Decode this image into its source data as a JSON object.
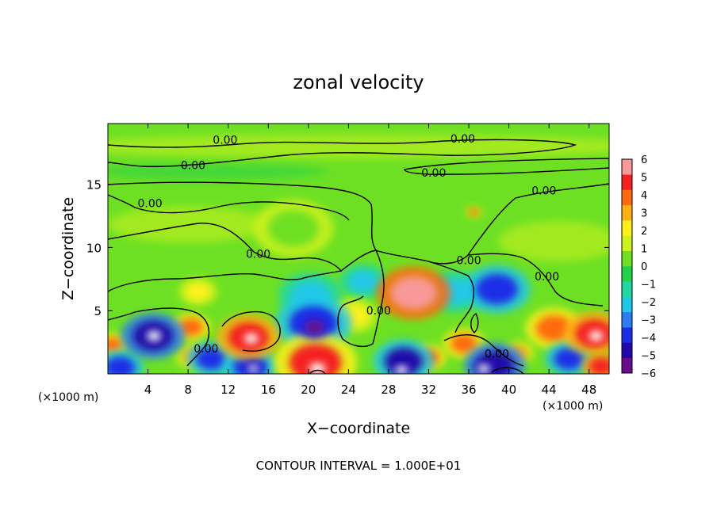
{
  "chart_data": {
    "type": "heatmap",
    "title": "zonal velocity",
    "xlabel": "X−coordinate",
    "ylabel": "Z−coordinate",
    "x_unit_left": "(×1000 m)",
    "x_unit_right": "(×1000 m)",
    "footer": "CONTOUR INTERVAL = 1.000E+01",
    "xlim": [
      0,
      50
    ],
    "ylim": [
      0,
      19.8
    ],
    "x_ticks": [
      4,
      8,
      12,
      16,
      20,
      24,
      28,
      32,
      36,
      40,
      44,
      48
    ],
    "y_ticks": [
      5,
      10,
      15
    ],
    "colorbar": {
      "range": [
        -6,
        6
      ],
      "ticks": [
        6,
        5,
        4,
        3,
        2,
        1,
        0,
        -1,
        -2,
        -3,
        -4,
        -5,
        -6
      ],
      "tick_labels": [
        "6",
        "5",
        "4",
        "3",
        "2",
        "1",
        "0",
        "−1",
        "−2",
        "−3",
        "−4",
        "−5",
        "−6"
      ],
      "colors": [
        "#6a0c8c",
        "#2208a8",
        "#1b2ee8",
        "#2d7cf0",
        "#20c8e8",
        "#20d8a0",
        "#22d04a",
        "#6ee024",
        "#cdf21c",
        "#fff01a",
        "#ffb012",
        "#ff6a10",
        "#f42020",
        "#f89898"
      ]
    },
    "contour_labels": [
      {
        "text": "0.00",
        "x": 11.7,
        "y": 18.5
      },
      {
        "text": "0.00",
        "x": 35.4,
        "y": 18.6
      },
      {
        "text": "0.00",
        "x": 8.5,
        "y": 16.5
      },
      {
        "text": "0.00",
        "x": 32.5,
        "y": 15.9
      },
      {
        "text": "0.00",
        "x": 43.5,
        "y": 14.5
      },
      {
        "text": "0.00",
        "x": 4.2,
        "y": 13.5
      },
      {
        "text": "0.00",
        "x": 15.0,
        "y": 9.5
      },
      {
        "text": "0.00",
        "x": 36.0,
        "y": 9.0
      },
      {
        "text": "0.00",
        "x": 43.8,
        "y": 7.7
      },
      {
        "text": "0.00",
        "x": 27.0,
        "y": 5.0
      },
      {
        "text": "0.00",
        "x": 9.8,
        "y": 2.0
      },
      {
        "text": "0.00",
        "x": 38.8,
        "y": 1.6
      }
    ],
    "field_blobs": [
      {
        "x": 4.5,
        "y": 3.0,
        "r": 2.0,
        "v": -5
      },
      {
        "x": 4.6,
        "y": 3.0,
        "r": 0.7,
        "v": -7
      },
      {
        "x": 8.3,
        "y": 3.7,
        "r": 1.2,
        "v": 4
      },
      {
        "x": 8.6,
        "y": 1.4,
        "r": 1.2,
        "v": 3
      },
      {
        "x": 10.3,
        "y": 1.2,
        "r": 1.5,
        "v": -4
      },
      {
        "x": 14.0,
        "y": 2.9,
        "r": 2.0,
        "v": 5
      },
      {
        "x": 14.3,
        "y": 2.8,
        "r": 0.7,
        "v": 7
      },
      {
        "x": 0.4,
        "y": 2.3,
        "r": 1.0,
        "v": 4
      },
      {
        "x": 1.2,
        "y": 0.5,
        "r": 1.5,
        "v": -4
      },
      {
        "x": 14.2,
        "y": 0.6,
        "r": 1.7,
        "v": -4
      },
      {
        "x": 14.5,
        "y": 0.4,
        "r": 0.5,
        "v": -7
      },
      {
        "x": 20.5,
        "y": 4.0,
        "r": 2.4,
        "v": -4
      },
      {
        "x": 20.6,
        "y": 3.7,
        "r": 1.0,
        "v": -5.5
      },
      {
        "x": 20.2,
        "y": 6.2,
        "r": 2.0,
        "v": -2.5
      },
      {
        "x": 20.7,
        "y": 0.9,
        "r": 2.6,
        "v": 4.5
      },
      {
        "x": 20.9,
        "y": 0.4,
        "r": 0.8,
        "v": 7
      },
      {
        "x": 24.5,
        "y": 4.6,
        "r": 1.5,
        "v": 2.5
      },
      {
        "x": 30.5,
        "y": 6.4,
        "r": 2.3,
        "v": 5.5
      },
      {
        "x": 29.5,
        "y": 1.0,
        "r": 1.9,
        "v": -4.5
      },
      {
        "x": 29.3,
        "y": 0.3,
        "r": 0.6,
        "v": -7
      },
      {
        "x": 32.0,
        "y": 1.3,
        "r": 1.1,
        "v": 4
      },
      {
        "x": 35.5,
        "y": 2.4,
        "r": 1.3,
        "v": 4
      },
      {
        "x": 38.8,
        "y": 6.7,
        "r": 2.1,
        "v": -4
      },
      {
        "x": 34.5,
        "y": 6.5,
        "r": 1.8,
        "v": -2.5
      },
      {
        "x": 38.6,
        "y": 0.7,
        "r": 1.9,
        "v": -5
      },
      {
        "x": 37.5,
        "y": 0.4,
        "r": 0.6,
        "v": -7
      },
      {
        "x": 41.0,
        "y": 1.7,
        "r": 1.0,
        "v": 3
      },
      {
        "x": 44.5,
        "y": 3.6,
        "r": 1.8,
        "v": 4
      },
      {
        "x": 48.5,
        "y": 3.2,
        "r": 1.9,
        "v": 5
      },
      {
        "x": 48.7,
        "y": 3.0,
        "r": 0.7,
        "v": 7
      },
      {
        "x": 46.0,
        "y": 1.2,
        "r": 1.5,
        "v": -4
      },
      {
        "x": 49.2,
        "y": 0.6,
        "r": 1.2,
        "v": 5
      },
      {
        "x": 25.5,
        "y": 7.3,
        "r": 1.5,
        "v": -1.8
      },
      {
        "x": 36.5,
        "y": 12.8,
        "r": 0.5,
        "v": 3.5
      },
      {
        "x": 9.0,
        "y": 6.5,
        "r": 1.2,
        "v": 2
      },
      {
        "x": 18.5,
        "y": 11.5,
        "r": 2.5,
        "v": 0.6
      }
    ]
  }
}
